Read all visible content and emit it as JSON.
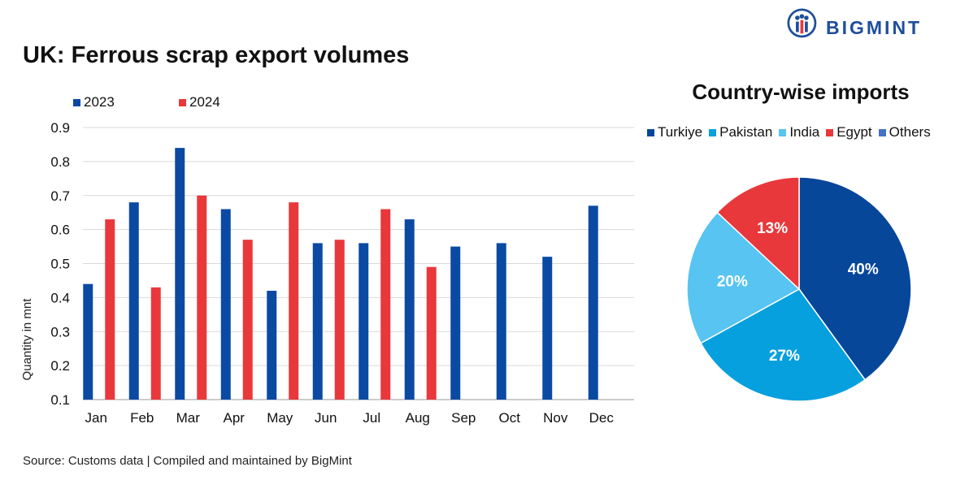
{
  "header": {
    "title": "UK: Ferrous scrap export volumes",
    "brand": "BIGMINT"
  },
  "source_note": "Source: Customs data | Compiled and maintained by BigMint",
  "colors": {
    "c2023": "#0b4aa2",
    "c2024": "#e8383b",
    "turkiye": "#07479a",
    "pakistan": "#06a0de",
    "india": "#57c4f1",
    "egypt": "#e8383b",
    "others": "#4472c4"
  },
  "chart_data": [
    {
      "type": "bar",
      "ylabel": "Quantity in mnt",
      "xlabel": "",
      "ylim": [
        0.1,
        0.9
      ],
      "yticks": [
        "0.1",
        "0.2",
        "0.3",
        "0.4",
        "0.5",
        "0.6",
        "0.7",
        "0.8",
        "0.9"
      ],
      "grid": true,
      "legend_position": "top-left",
      "categories": [
        "Jan",
        "Feb",
        "Mar",
        "Apr",
        "May",
        "Jun",
        "Jul",
        "Aug",
        "Sep",
        "Oct",
        "Nov",
        "Dec"
      ],
      "series": [
        {
          "name": "2023",
          "color": "#0b4aa2",
          "values": [
            0.44,
            0.68,
            0.84,
            0.66,
            0.42,
            0.56,
            0.56,
            0.63,
            0.55,
            0.56,
            0.52,
            0.67
          ]
        },
        {
          "name": "2024",
          "color": "#e8383b",
          "values": [
            0.63,
            0.43,
            0.7,
            0.57,
            0.68,
            0.57,
            0.66,
            0.49,
            null,
            null,
            null,
            null
          ]
        }
      ]
    },
    {
      "type": "pie",
      "title": "Country-wise imports",
      "legend_position": "top",
      "slices": [
        {
          "name": "Turkiye",
          "value": 40,
          "label": "40%",
          "color": "#07479a"
        },
        {
          "name": "Pakistan",
          "value": 27,
          "label": "27%",
          "color": "#06a0de"
        },
        {
          "name": "India",
          "value": 20,
          "label": "20%",
          "color": "#57c4f1"
        },
        {
          "name": "Egypt",
          "value": 13,
          "label": "13%",
          "color": "#e8383b"
        },
        {
          "name": "Others",
          "value": 0,
          "label": "",
          "color": "#4472c4"
        }
      ]
    }
  ]
}
